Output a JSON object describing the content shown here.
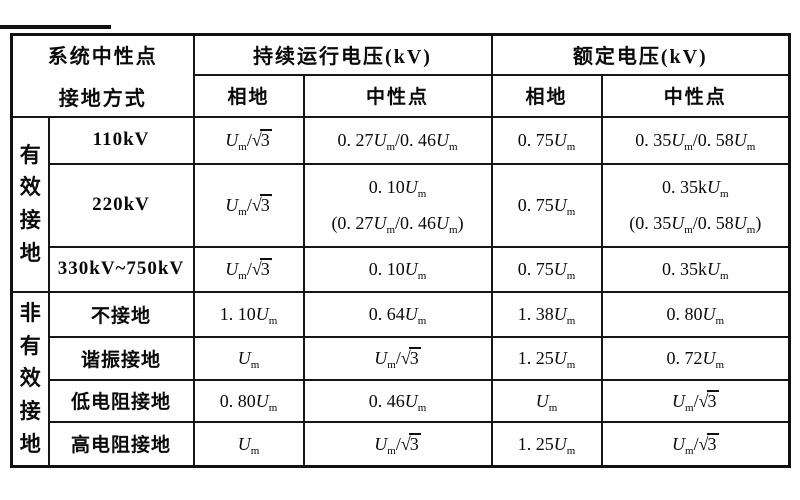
{
  "table": {
    "header": {
      "corner_line1": "系统中性点",
      "corner_line2": "接地方式",
      "continuous": "持续运行电压(kV)",
      "rated": "额定电压(kV)",
      "phase_ground": "相地",
      "neutral": "中性点"
    },
    "groups": [
      {
        "label": "有效接地",
        "rows": [
          {
            "name": "110kV",
            "cont_pg": "U_m/√3",
            "cont_n": "0. 27U_m/0. 46U_m",
            "rated_pg": "0. 75U_m",
            "rated_n": "0. 35U_m/0. 58U_m"
          },
          {
            "name": "220kV",
            "cont_pg": "U_m/√3",
            "cont_n": "0. 10U_m\n(0. 27U_m/0. 46U_m)",
            "rated_pg": "0. 75U_m",
            "rated_n": "0. 35kU_m\n(0. 35U_m/0. 58U_m)"
          },
          {
            "name": "330kV~750kV",
            "cont_pg": "U_m/√3",
            "cont_n": "0. 10U_m",
            "rated_pg": "0. 75U_m",
            "rated_n": "0. 35kU_m"
          }
        ]
      },
      {
        "label": "非有效接地",
        "rows": [
          {
            "name": "不接地",
            "cont_pg": "1. 10U_m",
            "cont_n": "0. 64U_m",
            "rated_pg": "1. 38U_m",
            "rated_n": "0. 80U_m"
          },
          {
            "name": "谐振接地",
            "cont_pg": "U_m",
            "cont_n": "U_m/√3",
            "rated_pg": "1. 25U_m",
            "rated_n": "0. 72U_m"
          },
          {
            "name": "低电阻接地",
            "cont_pg": "0. 80U_m",
            "cont_n": "0. 46U_m",
            "rated_pg": "U_m",
            "rated_n": "U_m/√3"
          },
          {
            "name": "高电阻接地",
            "cont_pg": "U_m",
            "cont_n": "U_m/√3",
            "rated_pg": "1. 25U_m",
            "rated_n": "U_m/√3"
          }
        ]
      }
    ]
  },
  "colors": {
    "ink": "#111111",
    "paper": "#fefefe"
  }
}
